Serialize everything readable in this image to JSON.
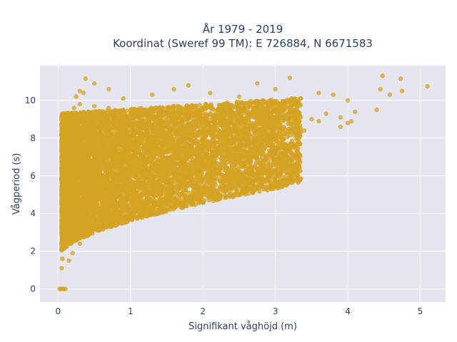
{
  "chart_data": {
    "type": "scatter",
    "title_line1": "År 1979 - 2019",
    "title_line2": "Koordinat (Sweref 99 TM): E 726884, N 6671583",
    "xlabel": "Signifikant våghöjd (m)",
    "ylabel": "Vågperiod (s)",
    "xlim": [
      -0.25,
      5.35
    ],
    "ylim": [
      -0.7,
      11.85
    ],
    "xticks": [
      0,
      1,
      2,
      3,
      4,
      5
    ],
    "yticks": [
      0,
      2,
      4,
      6,
      8,
      10
    ],
    "grid": true,
    "marker_color": "#d4a321",
    "background_color": "#e5e5f0",
    "points": [
      [
        0.02,
        0.0
      ],
      [
        0.04,
        0.0
      ],
      [
        0.06,
        0.0
      ],
      [
        0.08,
        0.0
      ],
      [
        0.1,
        0.0
      ],
      [
        0.05,
        1.1
      ],
      [
        0.06,
        1.6
      ],
      [
        0.07,
        2.2
      ],
      [
        0.09,
        3.0
      ],
      [
        0.1,
        4.0
      ],
      [
        0.12,
        5.0
      ],
      [
        0.15,
        6.2
      ],
      [
        0.18,
        7.5
      ],
      [
        0.2,
        8.8
      ],
      [
        0.22,
        9.6
      ],
      [
        0.25,
        10.2
      ],
      [
        0.3,
        10.5
      ],
      [
        0.35,
        10.4
      ],
      [
        0.1,
        2.6
      ],
      [
        0.15,
        3.2
      ],
      [
        0.2,
        3.6
      ],
      [
        0.3,
        4.0
      ],
      [
        0.4,
        4.3
      ],
      [
        0.5,
        4.6
      ],
      [
        0.6,
        4.9
      ],
      [
        0.7,
        5.2
      ],
      [
        0.8,
        5.5
      ],
      [
        0.9,
        5.8
      ],
      [
        1.0,
        6.0
      ],
      [
        1.2,
        6.3
      ],
      [
        1.4,
        6.6
      ],
      [
        1.6,
        6.9
      ],
      [
        1.8,
        7.1
      ],
      [
        2.0,
        7.3
      ],
      [
        2.2,
        7.5
      ],
      [
        2.4,
        7.7
      ],
      [
        2.6,
        7.9
      ],
      [
        2.8,
        8.0
      ],
      [
        3.0,
        8.1
      ],
      [
        3.2,
        8.3
      ],
      [
        3.4,
        8.4
      ],
      [
        0.3,
        9.8
      ],
      [
        0.5,
        9.7
      ],
      [
        0.7,
        9.6
      ],
      [
        0.9,
        9.5
      ],
      [
        1.1,
        9.4
      ],
      [
        1.3,
        9.5
      ],
      [
        1.5,
        9.6
      ],
      [
        1.7,
        9.5
      ],
      [
        1.9,
        9.4
      ],
      [
        2.1,
        9.3
      ],
      [
        2.3,
        9.2
      ],
      [
        2.5,
        9.3
      ],
      [
        2.7,
        9.5
      ],
      [
        2.9,
        9.6
      ],
      [
        3.1,
        9.4
      ],
      [
        3.3,
        9.2
      ],
      [
        3.5,
        9.0
      ],
      [
        3.7,
        9.3
      ],
      [
        3.9,
        9.1
      ],
      [
        0.38,
        11.15
      ],
      [
        0.5,
        10.9
      ],
      [
        0.7,
        10.6
      ],
      [
        0.9,
        10.1
      ],
      [
        1.3,
        10.3
      ],
      [
        1.6,
        10.6
      ],
      [
        1.8,
        10.8
      ],
      [
        2.1,
        10.4
      ],
      [
        2.5,
        10.2
      ],
      [
        2.75,
        10.9
      ],
      [
        3.0,
        10.6
      ],
      [
        3.2,
        11.2
      ],
      [
        3.6,
        10.4
      ],
      [
        3.8,
        10.3
      ],
      [
        4.0,
        10.0
      ],
      [
        4.1,
        9.4
      ],
      [
        4.4,
        9.5
      ],
      [
        4.45,
        10.6
      ],
      [
        4.48,
        11.3
      ],
      [
        4.58,
        10.3
      ],
      [
        4.73,
        11.15
      ],
      [
        4.75,
        10.5
      ],
      [
        5.1,
        10.75
      ],
      [
        4.0,
        8.8
      ],
      [
        4.05,
        8.9
      ],
      [
        3.9,
        8.6
      ],
      [
        3.6,
        8.9
      ],
      [
        3.3,
        9.6
      ],
      [
        2.6,
        6.8
      ],
      [
        2.4,
        6.5
      ],
      [
        2.1,
        6.2
      ],
      [
        1.8,
        5.9
      ],
      [
        1.5,
        5.3
      ],
      [
        1.2,
        4.7
      ],
      [
        1.0,
        4.2
      ],
      [
        0.8,
        3.8
      ],
      [
        0.6,
        3.3
      ],
      [
        0.4,
        2.8
      ],
      [
        0.3,
        2.4
      ],
      [
        0.2,
        1.9
      ],
      [
        0.15,
        1.5
      ]
    ]
  }
}
